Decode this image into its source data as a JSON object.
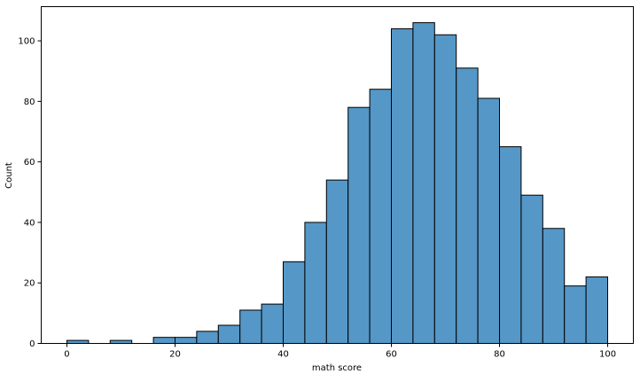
{
  "chart_data": {
    "type": "bar",
    "title": "",
    "xlabel": "math score",
    "ylabel": "Count",
    "xlim": [
      -4.75,
      104.75
    ],
    "ylim": [
      0,
      111.3
    ],
    "x_ticks": [
      0,
      20,
      40,
      60,
      80,
      100
    ],
    "y_ticks": [
      0,
      20,
      40,
      60,
      80,
      100
    ],
    "grid": false,
    "bar_color": "#5597c7",
    "edge_color": "#000000",
    "bins": [
      {
        "x0": 0,
        "x1": 4,
        "count": 1
      },
      {
        "x0": 4,
        "x1": 8,
        "count": 0
      },
      {
        "x0": 8,
        "x1": 12,
        "count": 1
      },
      {
        "x0": 12,
        "x1": 16,
        "count": 0
      },
      {
        "x0": 16,
        "x1": 20,
        "count": 2
      },
      {
        "x0": 20,
        "x1": 24,
        "count": 2
      },
      {
        "x0": 24,
        "x1": 28,
        "count": 4
      },
      {
        "x0": 28,
        "x1": 32,
        "count": 6
      },
      {
        "x0": 32,
        "x1": 36,
        "count": 11
      },
      {
        "x0": 36,
        "x1": 40,
        "count": 13
      },
      {
        "x0": 40,
        "x1": 44,
        "count": 27
      },
      {
        "x0": 44,
        "x1": 48,
        "count": 40
      },
      {
        "x0": 48,
        "x1": 52,
        "count": 54
      },
      {
        "x0": 52,
        "x1": 56,
        "count": 78
      },
      {
        "x0": 56,
        "x1": 60,
        "count": 84
      },
      {
        "x0": 60,
        "x1": 64,
        "count": 104
      },
      {
        "x0": 64,
        "x1": 68,
        "count": 106
      },
      {
        "x0": 68,
        "x1": 72,
        "count": 102
      },
      {
        "x0": 72,
        "x1": 76,
        "count": 91
      },
      {
        "x0": 76,
        "x1": 80,
        "count": 81
      },
      {
        "x0": 80,
        "x1": 84,
        "count": 65
      },
      {
        "x0": 84,
        "x1": 88,
        "count": 49
      },
      {
        "x0": 88,
        "x1": 92,
        "count": 38
      },
      {
        "x0": 92,
        "x1": 96,
        "count": 19
      },
      {
        "x0": 96,
        "x1": 100,
        "count": 22
      }
    ]
  }
}
